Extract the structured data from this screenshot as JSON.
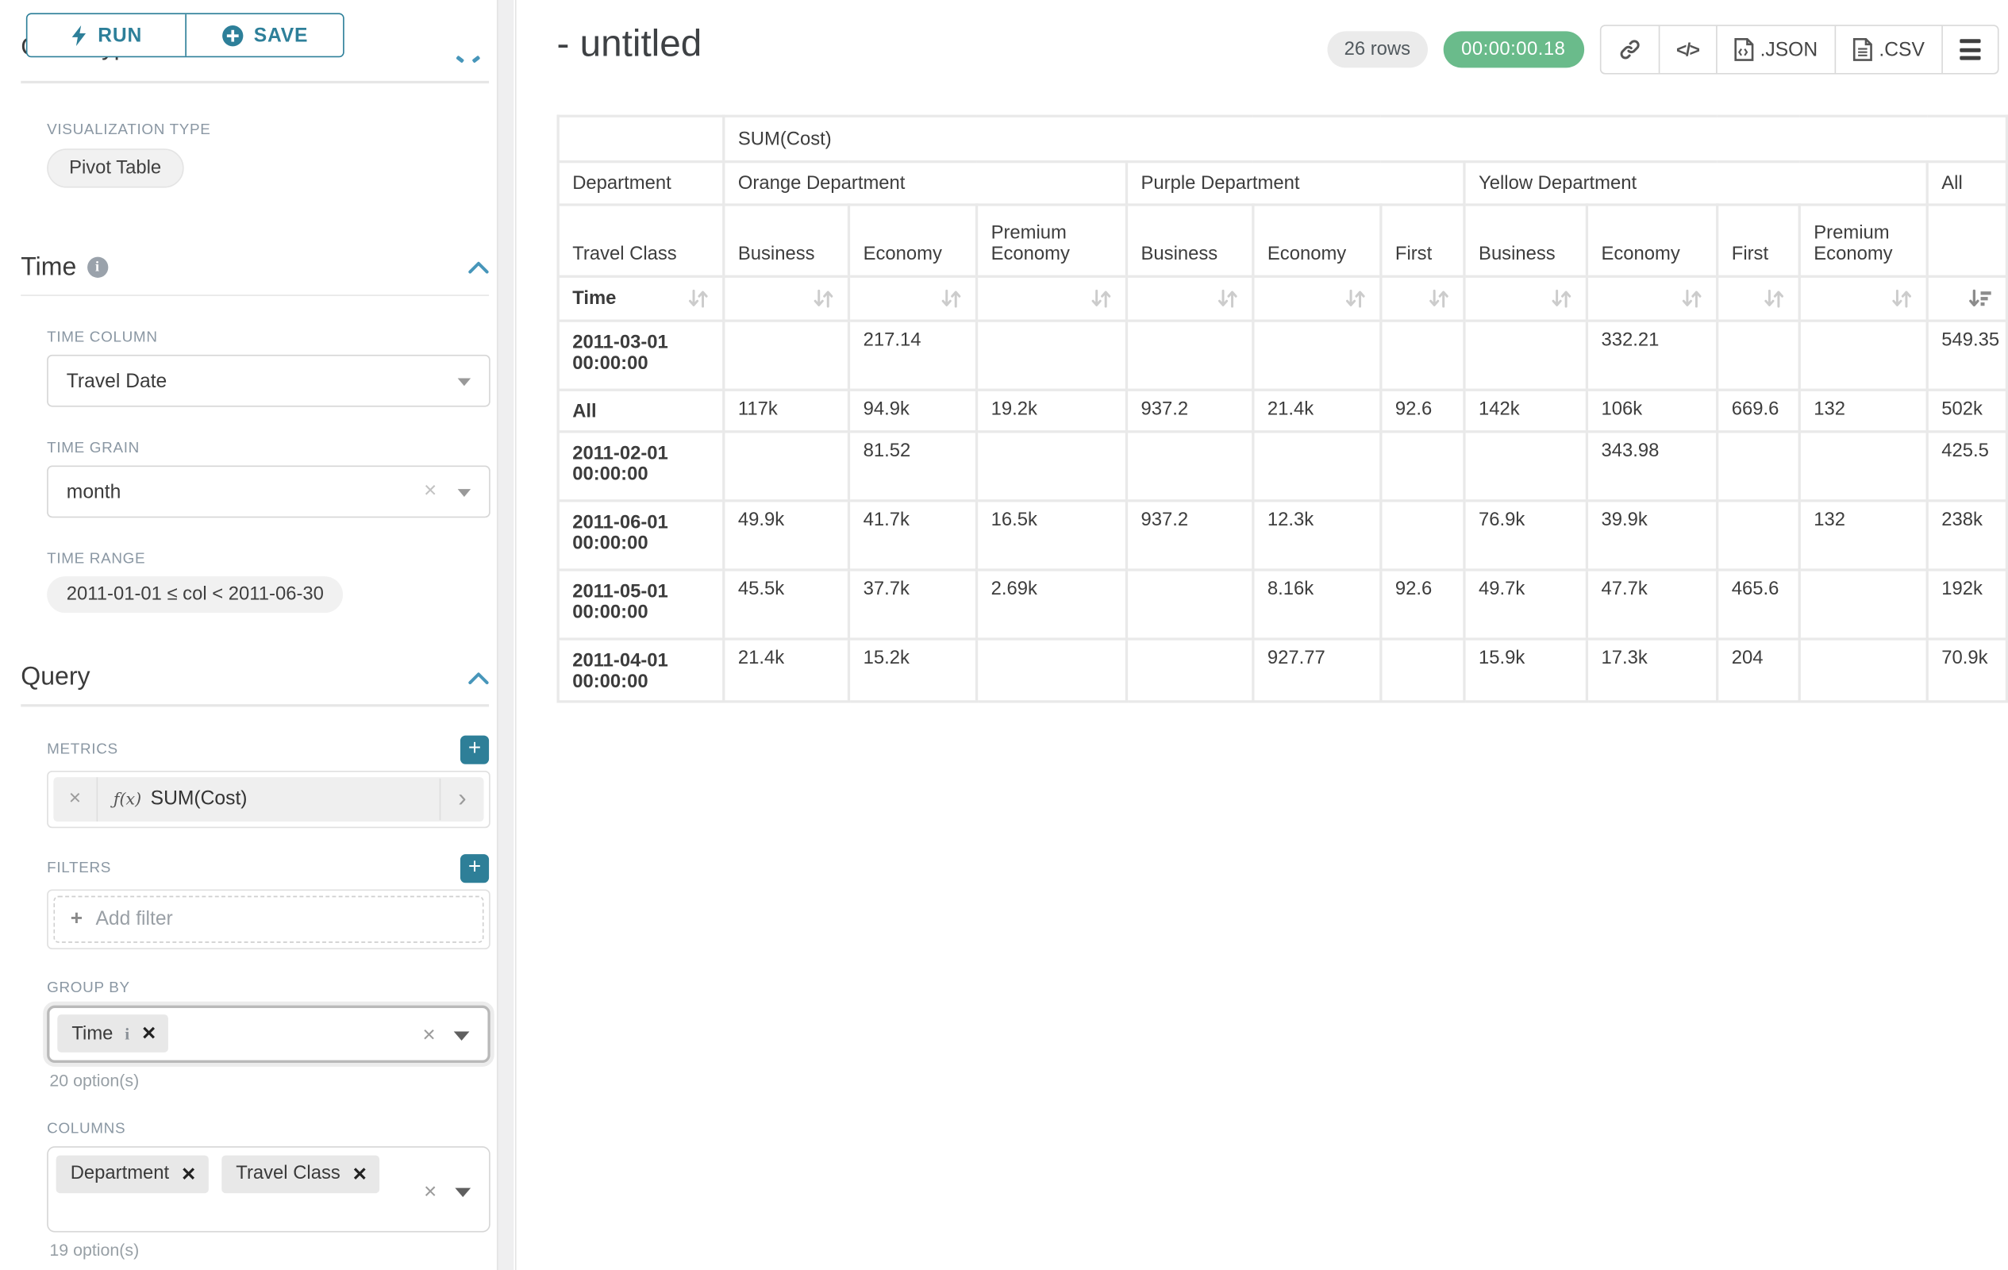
{
  "sidebar": {
    "run_label": "RUN",
    "save_label": "SAVE",
    "top_section": "Chart Type",
    "viz_type_label": "VISUALIZATION TYPE",
    "viz_type_value": "Pivot Table",
    "time_section": "Time",
    "time_column_label": "TIME COLUMN",
    "time_column_value": "Travel Date",
    "time_grain_label": "TIME GRAIN",
    "time_grain_value": "month",
    "time_range_label": "TIME RANGE",
    "time_range_value": "2011-01-01 ≤ col < 2011-06-30",
    "query_section": "Query",
    "metrics_label": "METRICS",
    "metric_fx": "ƒ(x)",
    "metric_value": "SUM(Cost)",
    "filters_label": "FILTERS",
    "add_filter_label": "Add filter",
    "group_by_label": "GROUP BY",
    "group_by_tags": [
      "Time"
    ],
    "group_by_options_note": "20 option(s)",
    "columns_label": "COLUMNS",
    "columns_tags": [
      "Department",
      "Travel Class"
    ],
    "columns_options_note": "19 option(s)"
  },
  "header": {
    "title": "- untitled",
    "rows_badge": "26 rows",
    "timer": "00:00:00.18",
    "json_label": ".JSON",
    "csv_label": ".CSV"
  },
  "colors": {
    "accent_teal": "#2d7f99",
    "timer_green": "#6abb8b",
    "section_caret_blue": "#4796ba"
  },
  "pivot": {
    "metric_header": "SUM(Cost)",
    "col_axis_label": "Department",
    "row_axis_label": "Travel Class",
    "sort_label": "Time",
    "col_groups": [
      {
        "label": "Orange Department",
        "span": 3
      },
      {
        "label": "Purple Department",
        "span": 3
      },
      {
        "label": "Yellow Department",
        "span": 4
      },
      {
        "label": "All",
        "span": 1
      }
    ],
    "col_headers": [
      "Business",
      "Economy",
      "Premium Economy",
      "Business",
      "Economy",
      "First",
      "Business",
      "Economy",
      "First",
      "Premium Economy",
      ""
    ],
    "rows": [
      {
        "label": "2011-03-01 00:00:00",
        "values": [
          "",
          "217.14",
          "",
          "",
          "",
          "",
          "",
          "332.21",
          "",
          "",
          "549.35"
        ]
      },
      {
        "label": "All",
        "values": [
          "117k",
          "94.9k",
          "19.2k",
          "937.2",
          "21.4k",
          "92.6",
          "142k",
          "106k",
          "669.6",
          "132",
          "502k"
        ]
      },
      {
        "label": "2011-02-01 00:00:00",
        "values": [
          "",
          "81.52",
          "",
          "",
          "",
          "",
          "",
          "343.98",
          "",
          "",
          "425.5"
        ]
      },
      {
        "label": "2011-06-01 00:00:00",
        "values": [
          "49.9k",
          "41.7k",
          "16.5k",
          "937.2",
          "12.3k",
          "",
          "76.9k",
          "39.9k",
          "",
          "132",
          "238k"
        ]
      },
      {
        "label": "2011-05-01 00:00:00",
        "values": [
          "45.5k",
          "37.7k",
          "2.69k",
          "",
          "8.16k",
          "92.6",
          "49.7k",
          "47.7k",
          "465.6",
          "",
          "192k"
        ]
      },
      {
        "label": "2011-04-01 00:00:00",
        "values": [
          "21.4k",
          "15.2k",
          "",
          "",
          "927.77",
          "",
          "15.9k",
          "17.3k",
          "204",
          "",
          "70.9k"
        ]
      }
    ]
  }
}
